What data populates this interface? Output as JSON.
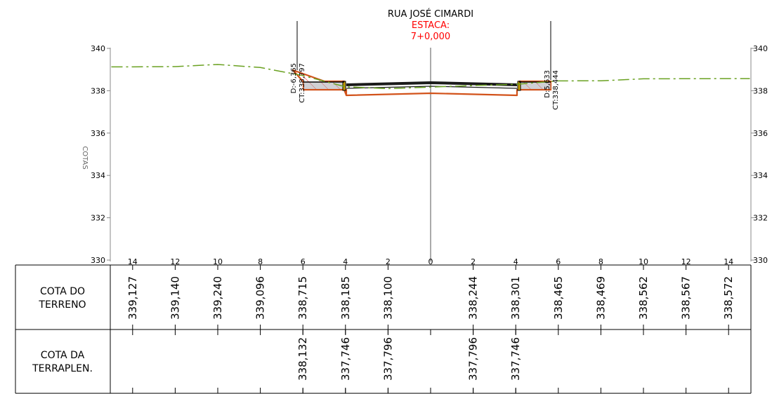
{
  "title": {
    "street": "RUA JOSÉ CIMARDI",
    "station_label": "ESTACA:",
    "station_value": "7+0,000",
    "station_color": "#ff0000"
  },
  "markers": {
    "left": {
      "offset": "D:-6,365",
      "elevation": "CT:338,797"
    },
    "right": {
      "offset": "D:5,633",
      "elevation": "CT:338,444"
    }
  },
  "colors": {
    "terrain": "#6aa121",
    "fill_outline": "#d2521a",
    "hatch": "#ff0000",
    "pavement": "#1a1a1a",
    "curb": "#c8a000"
  },
  "chart_data": {
    "type": "line",
    "ylabel": "COTAS",
    "ylim": [
      330,
      340
    ],
    "xlim": [
      -15,
      15
    ],
    "y_ticks": [
      340,
      338,
      336,
      334,
      332,
      330
    ],
    "y_tick_labels": [
      "340",
      "338",
      "336",
      "334",
      "332",
      "330"
    ],
    "x_ticks": [
      -14,
      -12,
      -10,
      -8,
      -6,
      -4,
      -2,
      0,
      2,
      4,
      6,
      8,
      10,
      12,
      14
    ],
    "x_tick_labels": [
      "14",
      "12",
      "10",
      "8",
      "6",
      "4",
      "2",
      "0",
      "2",
      "4",
      "6",
      "8",
      "10",
      "12",
      "14"
    ],
    "series": [
      {
        "name": "",
        "x": [
          -15,
          -14,
          -12,
          -10,
          -8,
          -6,
          -4,
          -2,
          2,
          4,
          6,
          8,
          10,
          12,
          14,
          15
        ],
        "y": [
          339.127,
          339.127,
          339.14,
          339.24,
          339.096,
          338.715,
          338.185,
          338.1,
          338.244,
          338.301,
          338.465,
          338.469,
          338.562,
          338.567,
          338.572,
          338.572
        ]
      },
      {
        "name": "",
        "x": [
          -6.365,
          -4,
          -2,
          2,
          4,
          5.633
        ],
        "y": [
          338.132,
          337.746,
          337.796,
          337.796,
          337.746,
          338.132
        ]
      }
    ]
  },
  "table": {
    "row1_label": [
      "COTA DO",
      "TERRENO"
    ],
    "row2_label": [
      "COTA DA",
      "TERRAPLEN."
    ],
    "terreno": [
      {
        "x": -14,
        "v": "339,127"
      },
      {
        "x": -12,
        "v": "339,140"
      },
      {
        "x": -10,
        "v": "339,240"
      },
      {
        "x": -8,
        "v": "339,096"
      },
      {
        "x": -6,
        "v": "338,715"
      },
      {
        "x": -4,
        "v": "338,185"
      },
      {
        "x": -2,
        "v": "338,100"
      },
      {
        "x": 2,
        "v": "338,244"
      },
      {
        "x": 4,
        "v": "338,301"
      },
      {
        "x": 6,
        "v": "338,465"
      },
      {
        "x": 8,
        "v": "338,469"
      },
      {
        "x": 10,
        "v": "338,562"
      },
      {
        "x": 12,
        "v": "338,567"
      },
      {
        "x": 14,
        "v": "338,572"
      }
    ],
    "terraplen": [
      {
        "x": -6,
        "v": "338,132"
      },
      {
        "x": -4,
        "v": "337,746"
      },
      {
        "x": -2,
        "v": "337,796"
      },
      {
        "x": 2,
        "v": "337,796"
      },
      {
        "x": 4,
        "v": "337,746"
      }
    ]
  }
}
